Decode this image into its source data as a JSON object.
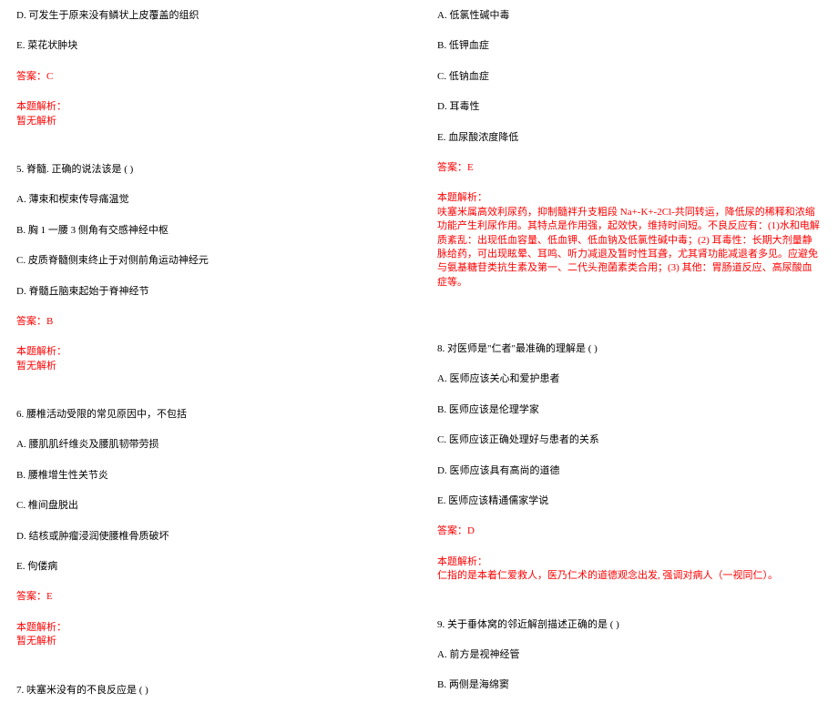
{
  "left": {
    "q4_optD": "D. 可发生于原来没有鳞状上皮覆盖的组织",
    "q4_optE": "E. 菜花状肿块",
    "q4_answer": "答案：C",
    "q4_exp_label": "本题解析：",
    "q4_exp_text": "暂无解析",
    "q5_title": "5. 脊髓. 正确的说法该是 (  )",
    "q5_optA": "A. 薄束和楔束传导痛温觉",
    "q5_optB": "B. 胸 1 一腰 3 侧角有交感神经中枢",
    "q5_optC": "C. 皮质脊髓侧束终止于对侧前角运动神经元",
    "q5_optD": "D. 脊髓丘脑束起始于脊神经节",
    "q5_answer": "答案：B",
    "q5_exp_label": "本题解析：",
    "q5_exp_text": "暂无解析",
    "q6_title": "6. 腰椎活动受限的常见原因中，不包括",
    "q6_optA": "A. 腰肌肌纤维炎及腰肌韧带劳损",
    "q6_optB": "B. 腰椎增生性关节炎",
    "q6_optC": "C. 椎间盘脱出",
    "q6_optD": "D. 结核或肿瘤浸润使腰椎骨质破坏",
    "q6_optE": "E. 佝偻病",
    "q6_answer": "答案：E",
    "q6_exp_label": "本题解析：",
    "q6_exp_text": "暂无解析",
    "q7_title": "7. 呋塞米没有的不良反应是 (  )"
  },
  "right": {
    "q7_optA": "A. 低氯性碱中毒",
    "q7_optB": "B. 低钾血症",
    "q7_optC": "C. 低钠血症",
    "q7_optD": "D. 耳毒性",
    "q7_optE": "E. 血尿酸浓度降低",
    "q7_answer": "答案：E",
    "q7_exp_label": "本题解析：",
    "q7_exp_text": "呋塞米属高效利尿药，抑制髓袢升支粗段 Na+-K+-2Cl-共同转运，降低尿的稀释和浓缩功能产生利尿作用。其特点是作用强，起效快，维持时间短。不良反应有：(1)水和电解质紊乱：出现低血容量、低血钾、低血钠及低氯性碱中毒；(2) 耳毒性：长期大剂量静脉给药，可出现眩晕、耳鸣、听力减退及暂时性耳聋，尤其肾功能减退者多见。应避免与氨基糖苷类抗生素及第一、二代头孢菌素类合用；(3) 其他：胃肠道反应、高尿酸血症等。",
    "q8_title": "8. 对医师是\"仁者\"最准确的理解是 (    )",
    "q8_optA": "A. 医师应该关心和爱护患者",
    "q8_optB": "B. 医师应该是伦理学家",
    "q8_optC": "C. 医师应该正确处理好与患者的关系",
    "q8_optD": "D. 医师应该具有高尚的道德",
    "q8_optE": "E. 医师应该精通儒家学说",
    "q8_answer": "答案：D",
    "q8_exp_label": "本题解析：",
    "q8_exp_text": "仁指的是本着仁爱救人，医乃仁术的道德观念出发, 强调对病人（一视同仁）。",
    "q9_title": "9. 关于垂体窝的邻近解剖描述正确的是 (    )",
    "q9_optA": "A. 前方是视神经管",
    "q9_optB": "B. 两侧是海绵窦"
  }
}
